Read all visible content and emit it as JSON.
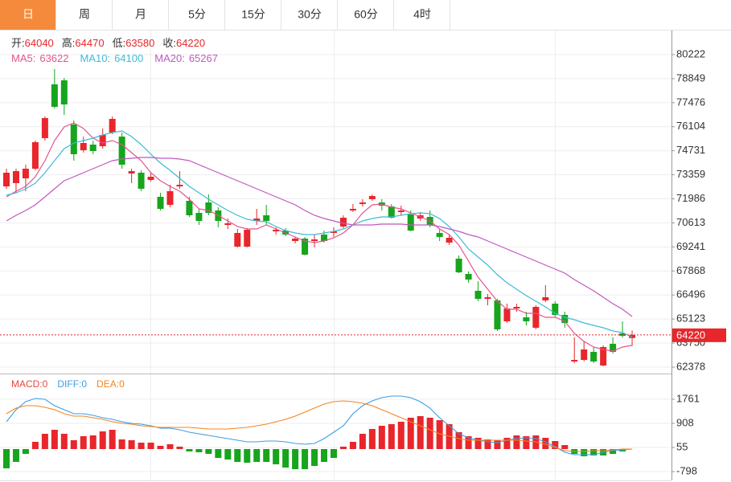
{
  "tabs": [
    "日",
    "周",
    "月",
    "5分",
    "15分",
    "30分",
    "60分",
    "4时"
  ],
  "active_tab": 0,
  "chart_data": [
    {
      "type": "candlestick",
      "info_labels": {
        "open": "开:",
        "high": "高:",
        "low": "低:",
        "close": "收:"
      },
      "up_color": "#e8262b",
      "down_color": "#16a51c",
      "open": [
        72699,
        72883,
        73158,
        73708,
        75451,
        78525,
        78754,
        76232,
        74763,
        75084,
        74992,
        75773,
        75543,
        73433,
        73479,
        73067,
        72103,
        71644,
        72699,
        71873,
        71186,
        71781,
        71323,
        70497,
        69259,
        69259,
        70727,
        71048,
        70130,
        70176,
        69580,
        69718,
        69580,
        69947,
        70039,
        70405,
        71323,
        71690,
        71965,
        71781,
        71552,
        71232,
        71094,
        70864,
        70956,
        70039,
        69488,
        68571,
        67699,
        66736,
        66277,
        66186,
        64993,
        65727,
        65222,
        64626,
        66186,
        66002,
        65360,
        62699,
        62791,
        63250,
        62470,
        63708,
        64305,
        64040
      ],
      "high": [
        73708,
        73708,
        73938,
        75314,
        76690,
        79396,
        78892,
        76461,
        75543,
        75314,
        76002,
        76690,
        75773,
        73708,
        73616,
        73479,
        72332,
        72791,
        73570,
        72103,
        71415,
        72240,
        71506,
        70864,
        70268,
        70314,
        71415,
        71644,
        70359,
        70314,
        69810,
        69810,
        69947,
        70176,
        70359,
        71048,
        71690,
        71965,
        72240,
        71965,
        71690,
        71598,
        71323,
        71232,
        71323,
        70268,
        69947,
        68754,
        67837,
        67286,
        66553,
        66277,
        66002,
        66002,
        65543,
        65910,
        67057,
        66140,
        65543,
        64075,
        63846,
        63524,
        63616,
        64075,
        64993,
        64470
      ],
      "low": [
        72562,
        72332,
        72424,
        73616,
        75314,
        77149,
        76781,
        74167,
        74626,
        74534,
        74855,
        75681,
        73708,
        72883,
        72424,
        72975,
        71323,
        71506,
        72562,
        70956,
        70497,
        71048,
        70359,
        70268,
        69213,
        69213,
        70497,
        70497,
        69947,
        69856,
        69442,
        68754,
        69213,
        69488,
        69810,
        70314,
        71232,
        71552,
        71873,
        71323,
        70864,
        71048,
        70130,
        70727,
        70359,
        69580,
        69351,
        67745,
        67194,
        66140,
        65910,
        64442,
        64901,
        65543,
        64764,
        64534,
        66094,
        65222,
        64626,
        62607,
        62699,
        62607,
        62424,
        63158,
        64075,
        63580
      ],
      "close": [
        73479,
        73570,
        73708,
        75222,
        76598,
        77240,
        77378,
        74534,
        75176,
        74717,
        75635,
        76552,
        73938,
        73570,
        72562,
        73250,
        71415,
        72424,
        72791,
        71048,
        70727,
        71186,
        70727,
        70589,
        70039,
        70222,
        70864,
        70727,
        70222,
        69947,
        69718,
        68800,
        69672,
        69580,
        70130,
        70910,
        71415,
        71781,
        72148,
        71598,
        70910,
        71323,
        70176,
        71048,
        70497,
        69810,
        69764,
        67791,
        67378,
        66277,
        66369,
        64534,
        65727,
        65818,
        64993,
        65818,
        66369,
        65360,
        64901,
        62791,
        63387,
        62699,
        63524,
        63250,
        64167,
        64220
      ],
      "series": [
        {
          "name": "MA5:",
          "color": "#e4548e",
          "values": [
            72103,
            72424,
            72699,
            73250,
            74167,
            75314,
            76094,
            76323,
            76002,
            75451,
            75176,
            75314,
            75084,
            74626,
            74167,
            73479,
            73021,
            72699,
            72424,
            71965,
            71415,
            71323,
            71048,
            70727,
            70405,
            70268,
            70268,
            70497,
            70268,
            70039,
            69810,
            69580,
            69488,
            69580,
            69764,
            70039,
            70497,
            71186,
            71644,
            71690,
            71506,
            71415,
            71186,
            70956,
            70727,
            70268,
            69947,
            69351,
            68433,
            67516,
            66828,
            66140,
            65681,
            65681,
            65451,
            65451,
            65222,
            65222,
            64993,
            64305,
            63846,
            63524,
            63387,
            63295,
            63524,
            63622
          ]
        },
        {
          "name": "MA10:",
          "color": "#3cbcd6",
          "values": [
            72195,
            72332,
            72562,
            72883,
            73479,
            74167,
            74855,
            75176,
            75314,
            75451,
            75635,
            75773,
            75865,
            75543,
            75084,
            74534,
            74029,
            73616,
            73158,
            72699,
            72332,
            71965,
            71644,
            71323,
            71048,
            70818,
            70727,
            70681,
            70405,
            70176,
            70039,
            69947,
            69947,
            70039,
            70130,
            70268,
            70497,
            70727,
            70864,
            70956,
            70956,
            71048,
            71140,
            71186,
            71140,
            70864,
            70405,
            69810,
            69121,
            68663,
            68204,
            67653,
            67194,
            66828,
            66461,
            66140,
            65818,
            65451,
            65222,
            65084,
            64901,
            64764,
            64626,
            64442,
            64350,
            64100
          ]
        },
        {
          "name": "MA20:",
          "color": "#c158bf",
          "values": [
            70727,
            71048,
            71323,
            71644,
            72103,
            72562,
            73021,
            73250,
            73479,
            73708,
            73938,
            74167,
            74259,
            74305,
            74351,
            74351,
            74305,
            74305,
            74259,
            74167,
            73938,
            73708,
            73479,
            73250,
            73021,
            72791,
            72562,
            72332,
            72103,
            71873,
            71644,
            71323,
            71048,
            70864,
            70727,
            70589,
            70497,
            70497,
            70497,
            70543,
            70543,
            70543,
            70497,
            70497,
            70497,
            70405,
            70268,
            70130,
            69947,
            69810,
            69580,
            69351,
            69121,
            68892,
            68663,
            68433,
            68204,
            67975,
            67745,
            67378,
            67057,
            66736,
            66369,
            66002,
            65681,
            65267
          ]
        }
      ],
      "ylim": [
        62011,
        81598
      ],
      "yticks": [
        80222,
        78849,
        77476,
        76104,
        74731,
        73359,
        71986,
        70613,
        69241,
        67868,
        66496,
        65123,
        63750,
        62378
      ],
      "grid": true
    },
    {
      "type": "macd",
      "up_color": "#e8262b",
      "down_color": "#16a51c",
      "series": [
        {
          "name": "MACD:",
          "kind": "bar",
          "color": "#e8473e",
          "values": [
            -682,
            -455,
            -171,
            256,
            540,
            682,
            540,
            313,
            455,
            483,
            625,
            682,
            341,
            313,
            227,
            227,
            114,
            171,
            85,
            -85,
            -114,
            -171,
            -313,
            -370,
            -455,
            -483,
            -455,
            -455,
            -540,
            -654,
            -711,
            -711,
            -597,
            -455,
            -313,
            85,
            256,
            540,
            711,
            824,
            881,
            967,
            1109,
            1166,
            1109,
            1023,
            881,
            597,
            455,
            398,
            341,
            313,
            398,
            483,
            455,
            483,
            398,
            284,
            142,
            -171,
            -256,
            -227,
            -227,
            -171,
            -85,
            0
          ]
        },
        {
          "name": "DIFF:",
          "kind": "line",
          "color": "#3d9de3",
          "values": [
            967,
            1393,
            1677,
            1791,
            1763,
            1535,
            1393,
            1251,
            1251,
            1194,
            1109,
            1052,
            967,
            910,
            881,
            824,
            739,
            739,
            682,
            597,
            540,
            483,
            426,
            370,
            313,
            256,
            256,
            284,
            284,
            256,
            199,
            171,
            199,
            370,
            597,
            824,
            1251,
            1535,
            1706,
            1820,
            1876,
            1876,
            1820,
            1677,
            1450,
            1109,
            824,
            540,
            398,
            313,
            256,
            227,
            313,
            370,
            398,
            370,
            256,
            85,
            -114,
            -199,
            -199,
            -199,
            -114,
            -57,
            -28,
            0
          ]
        },
        {
          "name": "DEA:",
          "kind": "line",
          "color": "#f5841f",
          "values": [
            1251,
            1450,
            1535,
            1535,
            1478,
            1393,
            1251,
            1166,
            1166,
            1109,
            1052,
            967,
            910,
            881,
            824,
            796,
            768,
            768,
            768,
            768,
            739,
            711,
            711,
            711,
            739,
            768,
            824,
            881,
            967,
            1052,
            1166,
            1308,
            1450,
            1592,
            1677,
            1706,
            1677,
            1620,
            1535,
            1393,
            1251,
            1109,
            967,
            824,
            682,
            540,
            455,
            370,
            313,
            313,
            313,
            313,
            313,
            313,
            284,
            256,
            171,
            57,
            -57,
            -85,
            -85,
            -57,
            -57,
            -28,
            0,
            0
          ]
        }
      ],
      "ylim": [
        -1109,
        2587
      ],
      "yticks": [
        1761,
        908,
        55,
        -798
      ],
      "grid": true
    }
  ]
}
